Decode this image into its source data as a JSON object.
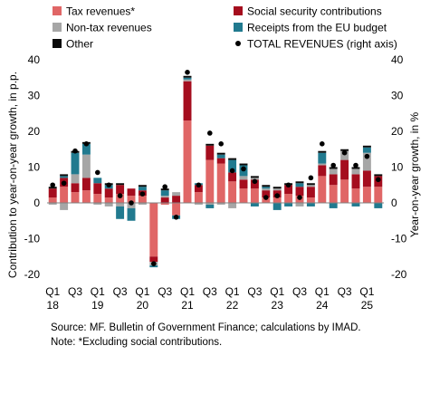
{
  "chart_data": {
    "type": "bar",
    "stacked": true,
    "ylabel": "Contribution to year-on-year growth, in p.p.",
    "y2label": "Year-on-year growth, in %",
    "ylim": [
      -20,
      40
    ],
    "y2lim": [
      -20,
      40
    ],
    "yticks": [
      -20,
      -10,
      0,
      10,
      20,
      30,
      40
    ],
    "grid": false,
    "legend_position": "top",
    "x": [
      "2018 Q1",
      "2018 Q2",
      "2018 Q3",
      "2018 Q4",
      "2019 Q1",
      "2019 Q2",
      "2019 Q3",
      "2019 Q4",
      "2020 Q1",
      "2020 Q2",
      "2020 Q3",
      "2020 Q4",
      "2021 Q1",
      "2021 Q2",
      "2021 Q3",
      "2021 Q4",
      "2022 Q1",
      "2022 Q2",
      "2022 Q3",
      "2022 Q4",
      "2023 Q1",
      "2023 Q2",
      "2023 Q3",
      "2023 Q4",
      "2024 Q1",
      "2024 Q2",
      "2024 Q3",
      "2024 Q4",
      "2025 Q1",
      "2025 Q2"
    ],
    "x_tick_labels": [
      {
        "index": 0,
        "line1": "Q1",
        "line2": "18"
      },
      {
        "index": 2,
        "line1": "Q3",
        "line2": ""
      },
      {
        "index": 4,
        "line1": "Q1",
        "line2": "19"
      },
      {
        "index": 6,
        "line1": "Q3",
        "line2": ""
      },
      {
        "index": 8,
        "line1": "Q1",
        "line2": "20"
      },
      {
        "index": 10,
        "line1": "Q3",
        "line2": ""
      },
      {
        "index": 12,
        "line1": "Q1",
        "line2": "21"
      },
      {
        "index": 14,
        "line1": "Q3",
        "line2": ""
      },
      {
        "index": 16,
        "line1": "Q1",
        "line2": "22"
      },
      {
        "index": 18,
        "line1": "Q3",
        "line2": ""
      },
      {
        "index": 20,
        "line1": "Q1",
        "line2": "23"
      },
      {
        "index": 22,
        "line1": "Q3",
        "line2": ""
      },
      {
        "index": 24,
        "line1": "Q1",
        "line2": "24"
      },
      {
        "index": 26,
        "line1": "Q3",
        "line2": ""
      },
      {
        "index": 28,
        "line1": "Q1",
        "line2": "25"
      }
    ],
    "series": [
      {
        "name": "Tax revenues*",
        "color": "#e06666",
        "values": [
          1.5,
          4.5,
          3.0,
          3.5,
          2.5,
          1.5,
          2.5,
          2.0,
          2.0,
          -15.0,
          -0.5,
          -3.5,
          23.0,
          3.0,
          12.0,
          11.0,
          6.0,
          4.0,
          4.0,
          1.5,
          1.5,
          2.5,
          2.0,
          1.5,
          7.5,
          5.0,
          6.5,
          4.0,
          4.5,
          4.5
        ]
      },
      {
        "name": "Social security contributions",
        "color": "#a50d1e",
        "values": [
          2.5,
          2.5,
          2.5,
          3.5,
          3.0,
          2.5,
          2.5,
          2.0,
          1.5,
          -1.5,
          1.5,
          2.0,
          11.0,
          2.0,
          4.0,
          1.5,
          2.5,
          2.5,
          2.5,
          2.0,
          2.0,
          2.5,
          2.5,
          3.0,
          3.0,
          3.0,
          5.5,
          4.0,
          4.5,
          3.0
        ]
      },
      {
        "name": "Non-tax revenues",
        "color": "#a6a6a6",
        "values": [
          -0.5,
          -2.0,
          2.5,
          6.5,
          -0.5,
          -1.0,
          -1.0,
          -1.5,
          -0.5,
          -1.0,
          0.5,
          1.0,
          0.5,
          -0.5,
          -0.5,
          -0.5,
          -1.5,
          1.0,
          0.5,
          0.5,
          0.5,
          0.0,
          -1.0,
          0.5,
          0.5,
          1.5,
          2.5,
          1.5,
          5.0,
          0.0
        ]
      },
      {
        "name": "Receipts from the EU budget",
        "color": "#217a8f",
        "values": [
          0.0,
          0.5,
          6.0,
          3.0,
          1.5,
          1.0,
          -3.5,
          -3.5,
          1.0,
          -0.5,
          1.5,
          -1.0,
          0.5,
          0.5,
          -1.0,
          1.0,
          3.5,
          3.0,
          -1.0,
          0.5,
          -2.0,
          -1.0,
          1.0,
          -1.0,
          3.0,
          -1.5,
          0.0,
          -1.0,
          1.5,
          -1.5
        ]
      },
      {
        "name": "Other",
        "color": "#0a0a0a",
        "values": [
          0.5,
          0.5,
          0.5,
          0.5,
          0.0,
          0.5,
          0.5,
          0.0,
          0.5,
          0.0,
          0.5,
          0.0,
          0.5,
          0.0,
          0.5,
          0.5,
          0.5,
          0.5,
          0.5,
          0.5,
          0.5,
          0.5,
          0.5,
          0.5,
          0.5,
          0.5,
          0.5,
          0.5,
          0.5,
          0.5
        ]
      },
      {
        "name": "TOTAL REVENUES (right axis)",
        "type": "scatter",
        "axis": "right",
        "color": "#000000",
        "values": [
          5.0,
          5.5,
          14.5,
          16.5,
          8.5,
          5.0,
          2.0,
          0.0,
          2.5,
          -17.0,
          4.5,
          -4.0,
          36.5,
          5.0,
          19.5,
          16.5,
          9.0,
          9.5,
          6.0,
          1.5,
          2.0,
          5.0,
          1.5,
          7.0,
          16.5,
          10.5,
          14.0,
          10.5,
          13.0,
          6.5
        ]
      }
    ],
    "source": "Source: MF. Bulletin of Government Finance; calculations by IMAD.",
    "note": "Note: *Excluding social contributions."
  }
}
